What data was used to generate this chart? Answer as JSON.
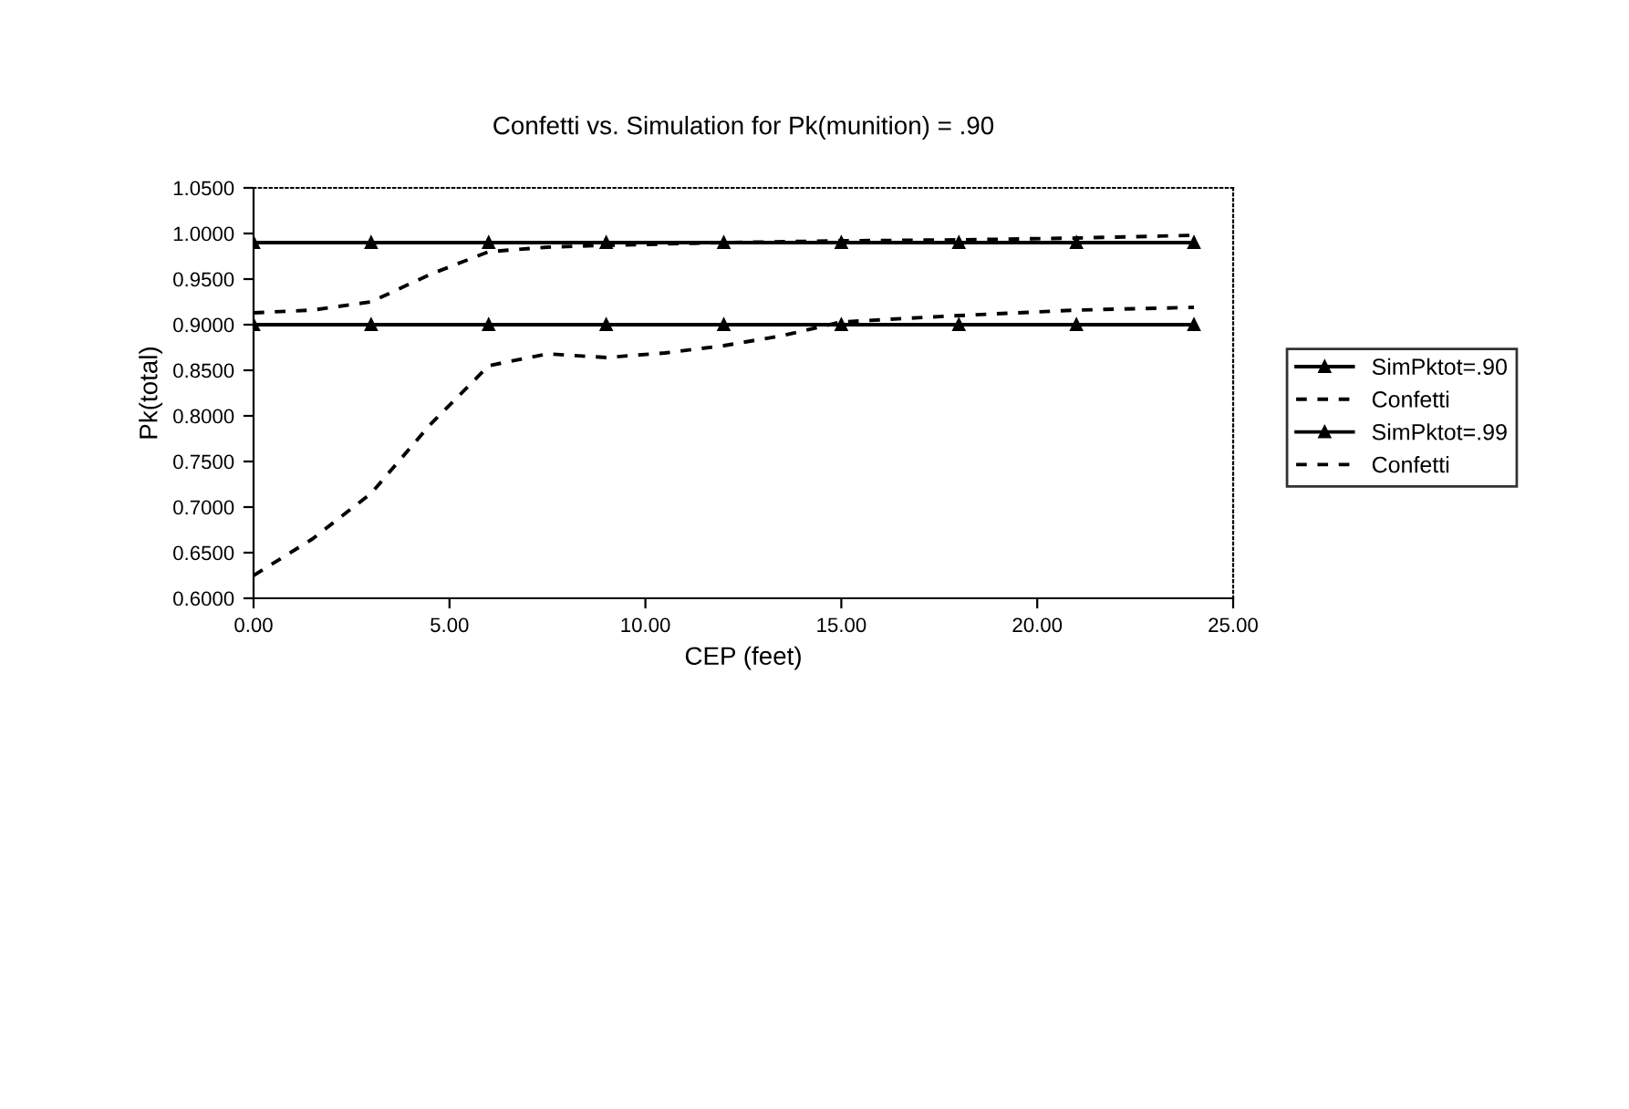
{
  "chart_data": {
    "type": "line",
    "title": "Confetti vs. Simulation for Pk(munition) = .90",
    "xlabel": "CEP (feet)",
    "ylabel": "Pk(total)",
    "xlim": [
      0,
      25
    ],
    "ylim": [
      0.6,
      1.05
    ],
    "xticks": [
      {
        "value": 0,
        "label": "0.00"
      },
      {
        "value": 5,
        "label": "5.00"
      },
      {
        "value": 10,
        "label": "10.00"
      },
      {
        "value": 15,
        "label": "15.00"
      },
      {
        "value": 20,
        "label": "20.00"
      },
      {
        "value": 25,
        "label": "25.00"
      }
    ],
    "yticks": [
      {
        "value": 0.6,
        "label": "0.6000"
      },
      {
        "value": 0.65,
        "label": "0.6500"
      },
      {
        "value": 0.7,
        "label": "0.7000"
      },
      {
        "value": 0.75,
        "label": "0.7500"
      },
      {
        "value": 0.8,
        "label": "0.8000"
      },
      {
        "value": 0.85,
        "label": "0.8500"
      },
      {
        "value": 0.9,
        "label": "0.9000"
      },
      {
        "value": 0.95,
        "label": "0.9500"
      },
      {
        "value": 1.0,
        "label": "1.0000"
      },
      {
        "value": 1.05,
        "label": "1.0500"
      }
    ],
    "grid": false,
    "legend": "right",
    "series": [
      {
        "name": "SimPktot=.90",
        "color": "#000000",
        "marker": "triangle",
        "line_style": "solid",
        "x": [
          0,
          3,
          6,
          9,
          12,
          15,
          18,
          21,
          24
        ],
        "values": [
          0.9,
          0.9,
          0.9,
          0.9,
          0.9,
          0.9,
          0.9,
          0.9,
          0.9
        ]
      },
      {
        "name": "Confetti",
        "color": "#000000",
        "marker": "none",
        "line_style": "dashed",
        "x": [
          0,
          1.5,
          3,
          4.5,
          6,
          7.5,
          9,
          10.5,
          12,
          13.5,
          15,
          18,
          21,
          24
        ],
        "values": [
          0.625,
          0.665,
          0.715,
          0.79,
          0.855,
          0.868,
          0.864,
          0.869,
          0.877,
          0.888,
          0.903,
          0.91,
          0.916,
          0.919
        ]
      },
      {
        "name": "SimPktot=.99",
        "color": "#000000",
        "marker": "triangle",
        "line_style": "solid",
        "x": [
          0,
          3,
          6,
          9,
          12,
          15,
          18,
          21,
          24
        ],
        "values": [
          0.99,
          0.99,
          0.99,
          0.99,
          0.99,
          0.99,
          0.99,
          0.99,
          0.99
        ]
      },
      {
        "name": "Confetti",
        "color": "#000000",
        "marker": "none",
        "line_style": "dashed",
        "x": [
          0,
          1.5,
          3,
          4.5,
          6,
          7.5,
          9,
          12,
          15,
          18,
          21,
          24
        ],
        "values": [
          0.913,
          0.916,
          0.925,
          0.955,
          0.98,
          0.985,
          0.987,
          0.99,
          0.992,
          0.993,
          0.995,
          0.998
        ]
      }
    ]
  }
}
